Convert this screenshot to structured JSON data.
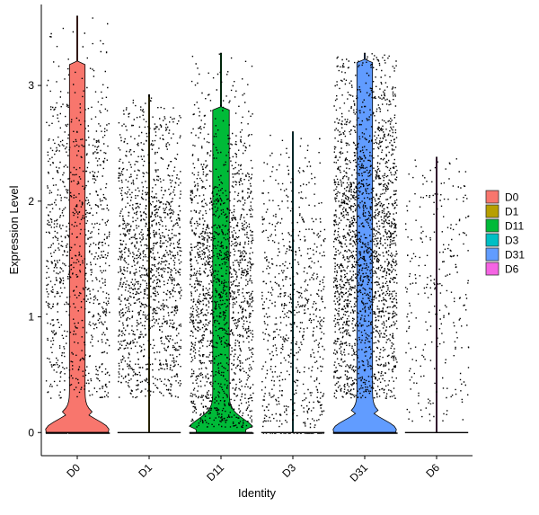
{
  "chart_data": {
    "type": "violin",
    "title": "",
    "xlabel": "Identity",
    "ylabel": "Expression Level",
    "ylim": [
      -0.2,
      3.7
    ],
    "yticks": [
      0,
      1,
      2,
      3
    ],
    "grid": false,
    "legend_position": "right",
    "categories": [
      "D0",
      "D1",
      "D11",
      "D3",
      "D31",
      "D6"
    ],
    "series": [
      {
        "name": "D0",
        "color": "#F8766D",
        "max": 3.6,
        "approx_points": 1300,
        "zero_fraction": 0.25,
        "nonzero_range": [
          0.3,
          2.9
        ]
      },
      {
        "name": "D1",
        "color": "#B79F00",
        "max": 2.92,
        "approx_points": 1400,
        "zero_fraction": 0.0,
        "nonzero_range": [
          0.3,
          2.6
        ]
      },
      {
        "name": "D11",
        "color": "#00BA38",
        "max": 3.28,
        "approx_points": 2200,
        "zero_fraction": 0.2,
        "nonzero_range": [
          0.05,
          2.5
        ]
      },
      {
        "name": "D3",
        "color": "#00BFC4",
        "max": 2.6,
        "approx_points": 750,
        "zero_fraction": 0.05,
        "nonzero_range": [
          0.05,
          2.2
        ]
      },
      {
        "name": "D31",
        "color": "#619CFF",
        "max": 3.28,
        "approx_points": 3200,
        "zero_fraction": 0.25,
        "nonzero_range": [
          0.3,
          2.9
        ]
      },
      {
        "name": "D6",
        "color": "#F564E3",
        "max": 2.38,
        "approx_points": 280,
        "zero_fraction": 0.0,
        "nonzero_range": [
          0.1,
          2.4
        ]
      }
    ]
  }
}
